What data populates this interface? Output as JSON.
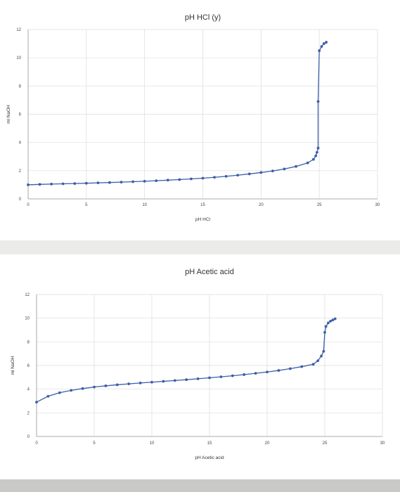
{
  "chart_data": [
    {
      "type": "scatter",
      "title": "pH HCl (y)",
      "xlabel": "pH HCl",
      "ylabel": "ml NaOH",
      "xlim": [
        0,
        30
      ],
      "ylim": [
        0,
        12
      ],
      "xticks": [
        "0",
        "5",
        "10",
        "15",
        "20",
        "25",
        "30"
      ],
      "yticks": [
        "0",
        "2",
        "4",
        "6",
        "8",
        "10",
        "12"
      ],
      "grid": true,
      "series": [
        {
          "color": "#3b5ea8",
          "x": [
            0,
            1,
            2,
            3,
            4,
            5,
            6,
            7,
            8,
            9,
            10,
            11,
            12,
            13,
            14,
            15,
            16,
            17,
            18,
            19,
            20,
            21,
            22,
            23,
            24,
            24.5,
            24.7,
            24.8,
            24.9,
            24.9,
            25.0,
            25.2,
            25.4,
            25.6
          ],
          "y": [
            1.0,
            1.03,
            1.05,
            1.07,
            1.09,
            1.11,
            1.14,
            1.16,
            1.19,
            1.22,
            1.25,
            1.29,
            1.33,
            1.37,
            1.42,
            1.47,
            1.53,
            1.6,
            1.68,
            1.77,
            1.87,
            1.98,
            2.12,
            2.3,
            2.55,
            2.8,
            3.05,
            3.3,
            3.6,
            6.9,
            10.5,
            10.8,
            11.0,
            11.1
          ]
        }
      ]
    },
    {
      "type": "scatter",
      "title": "pH Acetic acid",
      "xlabel": "pH Acetic acid",
      "ylabel": "ml NaOH",
      "xlim": [
        0,
        30
      ],
      "ylim": [
        0,
        12
      ],
      "xticks": [
        "0",
        "5",
        "10",
        "15",
        "20",
        "25",
        "30"
      ],
      "yticks": [
        "0",
        "2",
        "4",
        "6",
        "8",
        "10",
        "12"
      ],
      "grid": true,
      "series": [
        {
          "color": "#3b5ea8",
          "x": [
            0,
            1,
            2,
            3,
            4,
            5,
            6,
            7,
            8,
            9,
            10,
            11,
            12,
            13,
            14,
            15,
            16,
            17,
            18,
            19,
            20,
            21,
            22,
            23,
            24,
            24.4,
            24.7,
            24.9,
            25.0,
            25.1,
            25.3,
            25.5,
            25.7,
            25.9
          ],
          "y": [
            2.9,
            3.4,
            3.7,
            3.9,
            4.05,
            4.18,
            4.28,
            4.37,
            4.45,
            4.52,
            4.59,
            4.66,
            4.73,
            4.8,
            4.88,
            4.96,
            5.04,
            5.13,
            5.23,
            5.34,
            5.45,
            5.58,
            5.73,
            5.9,
            6.1,
            6.4,
            6.8,
            7.2,
            8.8,
            9.3,
            9.6,
            9.75,
            9.85,
            9.95
          ]
        }
      ]
    }
  ]
}
